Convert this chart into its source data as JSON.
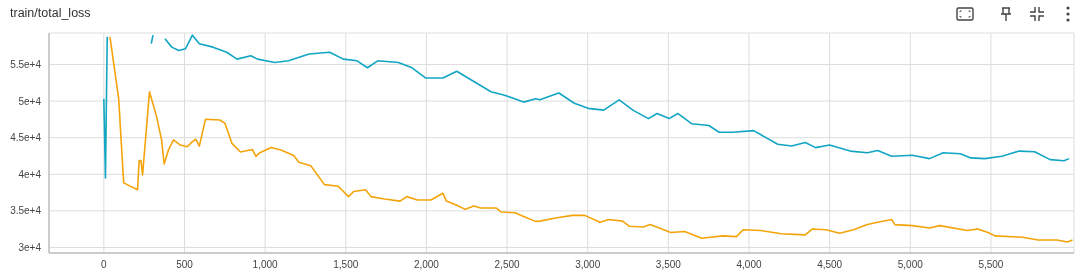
{
  "chart_data": {
    "type": "line",
    "title": "train/total_loss",
    "xlim": [
      -340,
      6015
    ],
    "xticks": [
      0,
      500,
      {
        "value": 1000,
        "label": "1,000"
      },
      {
        "value": 1500,
        "label": "1,500"
      },
      {
        "value": 2000,
        "label": "2,000"
      },
      {
        "value": 2500,
        "label": "2,500"
      },
      {
        "value": 3000,
        "label": "3,000"
      },
      {
        "value": 3500,
        "label": "3,500"
      },
      {
        "value": 4000,
        "label": "4,000"
      },
      {
        "value": 4500,
        "label": "4,500"
      },
      {
        "value": 5000,
        "label": "5,000"
      },
      {
        "value": 5500,
        "label": "5,500"
      }
    ],
    "ylim": [
      29250,
      59300
    ],
    "yticks": [
      {
        "value": 30000,
        "label": "3e+4"
      },
      {
        "value": 35000,
        "label": "3.5e+4"
      },
      {
        "value": 40000,
        "label": "4e+4"
      },
      {
        "value": 45000,
        "label": "4.5e+4"
      },
      {
        "value": 50000,
        "label": "5e+4"
      },
      {
        "value": 55000,
        "label": "5.5e+4"
      }
    ],
    "grid": true,
    "series": [
      {
        "color": "#12a6c4",
        "x": [
          0,
          10,
          21,
          25,
          294,
          305,
          315,
          379,
          421,
          464,
          506,
          549,
          592,
          677,
          762,
          826,
          911,
          953,
          1060,
          1145,
          1273,
          1400,
          1485,
          1570,
          1634,
          1698,
          1826,
          1911,
          1996,
          2102,
          2188,
          2294,
          2400,
          2485,
          2603,
          2677,
          2703,
          2821,
          2917,
          3002,
          3099,
          3195,
          3280,
          3376,
          3430,
          3505,
          3558,
          3644,
          3751,
          3815,
          3900,
          4029,
          4178,
          4264,
          4349,
          4413,
          4499,
          4627,
          4734,
          4798,
          4884,
          5012,
          5119,
          5204,
          5311,
          5375,
          5461,
          5568,
          5675,
          5771,
          5867,
          5953,
          5985
        ],
        "values": [
          50300,
          39500,
          58800,
          null,
          57840,
          59000,
          null,
          58500,
          57370,
          56900,
          57140,
          59000,
          57840,
          57370,
          56670,
          55730,
          56200,
          55730,
          55260,
          55500,
          56430,
          56670,
          55730,
          55500,
          54550,
          55500,
          55260,
          54550,
          53150,
          53150,
          54080,
          52680,
          51270,
          50800,
          49860,
          50330,
          50170,
          51110,
          49710,
          49010,
          48770,
          50170,
          48770,
          47610,
          48310,
          47610,
          48310,
          46910,
          46670,
          45740,
          45740,
          45970,
          44100,
          43870,
          44340,
          43640,
          44010,
          43170,
          42940,
          43260,
          42470,
          42610,
          42140,
          42940,
          42800,
          42240,
          42140,
          42470,
          43170,
          43080,
          42000,
          41860,
          42140
        ]
      },
      {
        "color": "#f4a40b",
        "x": [
          38,
          92,
          123,
          209,
          219,
          230,
          240,
          283,
          326,
          358,
          374,
          400,
          432,
          474,
          517,
          549,
          570,
          592,
          630,
          719,
          751,
          794,
          847,
          921,
          943,
          964,
          1038,
          1102,
          1177,
          1209,
          1283,
          1368,
          1453,
          1517,
          1549,
          1623,
          1656,
          1741,
          1836,
          1879,
          1943,
          2028,
          2102,
          2124,
          2188,
          2241,
          2294,
          2337,
          2432,
          2464,
          2549,
          2603,
          2677,
          2703,
          2810,
          2906,
          2981,
          3077,
          3131,
          3216,
          3259,
          3344,
          3387,
          3515,
          3601,
          3708,
          3836,
          3922,
          3964,
          4071,
          4200,
          4349,
          4392,
          4477,
          4563,
          4648,
          4734,
          4798,
          4884,
          4905,
          5012,
          5119,
          5183,
          5354,
          5418,
          5482,
          5525,
          5696,
          5793,
          5910,
          5974,
          6006
        ],
        "values": [
          58780,
          50330,
          38830,
          37890,
          41880,
          41880,
          39900,
          51270,
          47980,
          44700,
          41410,
          43290,
          44700,
          43990,
          43760,
          44460,
          44790,
          43850,
          47510,
          47420,
          46950,
          44230,
          43050,
          43380,
          42440,
          42910,
          43660,
          43290,
          42580,
          41640,
          41170,
          38590,
          38360,
          36950,
          37650,
          37890,
          36950,
          36620,
          36340,
          36950,
          36480,
          36480,
          37420,
          36340,
          35770,
          35210,
          35680,
          35400,
          35400,
          34840,
          34740,
          34230,
          33570,
          33600,
          34060,
          34390,
          34390,
          33460,
          33830,
          33600,
          32900,
          32800,
          33130,
          32050,
          32190,
          31260,
          31590,
          31490,
          32430,
          32330,
          31870,
          31730,
          32520,
          32430,
          31960,
          32430,
          33130,
          33460,
          33830,
          33130,
          32990,
          32660,
          32990,
          32330,
          32520,
          32050,
          31590,
          31400,
          31030,
          31030,
          30750,
          31030
        ]
      }
    ]
  }
}
